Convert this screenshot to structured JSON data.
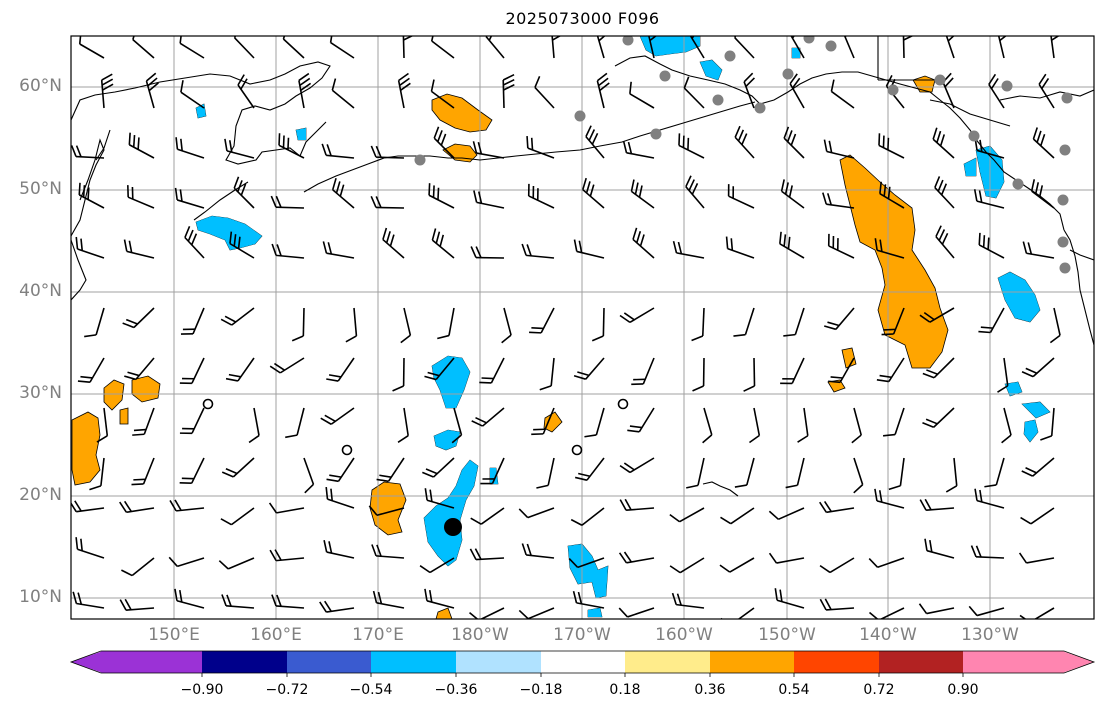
{
  "title": "2025073000 F096",
  "map": {
    "lat_labels": [
      "60°N",
      "50°N",
      "40°N",
      "30°N",
      "20°N",
      "10°N"
    ],
    "lon_labels": [
      "150°E",
      "160°E",
      "170°E",
      "180°W",
      "170°W",
      "160°W",
      "150°W",
      "140°W",
      "130°W"
    ],
    "grid_color": "#a0a0a0",
    "background": "#ffffff"
  },
  "colorbar": {
    "colors": [
      "#9b32d6",
      "#00008b",
      "#3a5bd0",
      "#00bfff",
      "#b0e2ff",
      "#ffffff",
      "#ffec8b",
      "#ffa500",
      "#ff4500",
      "#b22222",
      "#ff85b0"
    ],
    "tick_labels": [
      "−0.90",
      "−0.72",
      "−0.54",
      "−0.36",
      "−0.18",
      "0.18",
      "0.36",
      "0.54",
      "0.72",
      "0.90"
    ],
    "extend": "both"
  },
  "field_colors": {
    "positive": "#ffa500",
    "negative": "#00bfff",
    "negative_light": "#b0e2ff"
  },
  "markers": {
    "station": "#808080",
    "storm_center": "#000000"
  }
}
